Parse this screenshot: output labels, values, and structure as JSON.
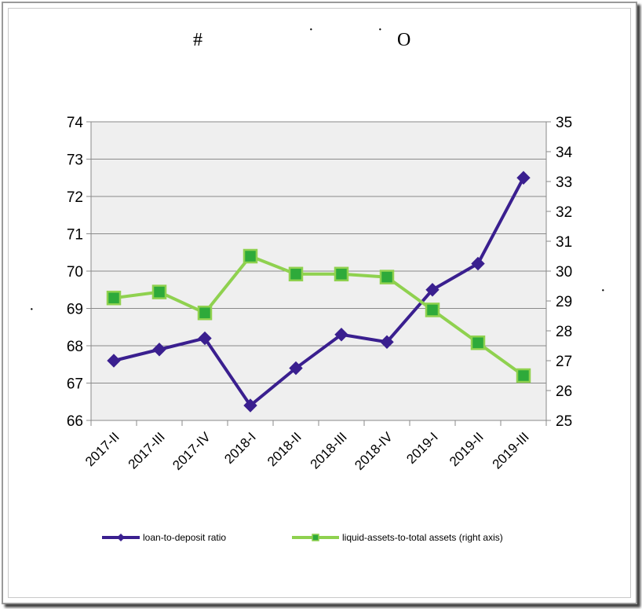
{
  "page": {
    "title_left": "#",
    "title_right": "O",
    "dot_marks": [
      "·",
      "·",
      "·",
      "·"
    ]
  },
  "chart_data": {
    "type": "line",
    "title": "",
    "xlabel": "",
    "ylabel": "",
    "categories": [
      "2017-II",
      "2017-III",
      "2017-IV",
      "2018-I",
      "2018-II",
      "2018-III",
      "2018-IV",
      "2019-I",
      "2019-II",
      "2019-III"
    ],
    "y_left": {
      "min": 66,
      "max": 74,
      "ticks": [
        66,
        67,
        68,
        69,
        70,
        71,
        72,
        73,
        74
      ]
    },
    "y_right": {
      "min": 25,
      "max": 35,
      "ticks": [
        25,
        26,
        27,
        28,
        29,
        30,
        31,
        32,
        33,
        34,
        35
      ]
    },
    "grid": true,
    "legend_position": "bottom",
    "series": [
      {
        "name": "loan-to-deposit ratio",
        "axis": "left",
        "color": "#3a1f8f",
        "marker": "diamond",
        "values": [
          67.6,
          67.9,
          68.2,
          66.4,
          67.4,
          68.3,
          68.1,
          69.5,
          70.2,
          72.5
        ]
      },
      {
        "name": "liquid-assets-to-total assets (right axis)",
        "axis": "right",
        "color": "#8fd14f",
        "marker": "square",
        "values": [
          29.1,
          29.3,
          28.6,
          30.5,
          29.9,
          29.9,
          29.8,
          28.7,
          27.6,
          26.5
        ]
      }
    ]
  }
}
